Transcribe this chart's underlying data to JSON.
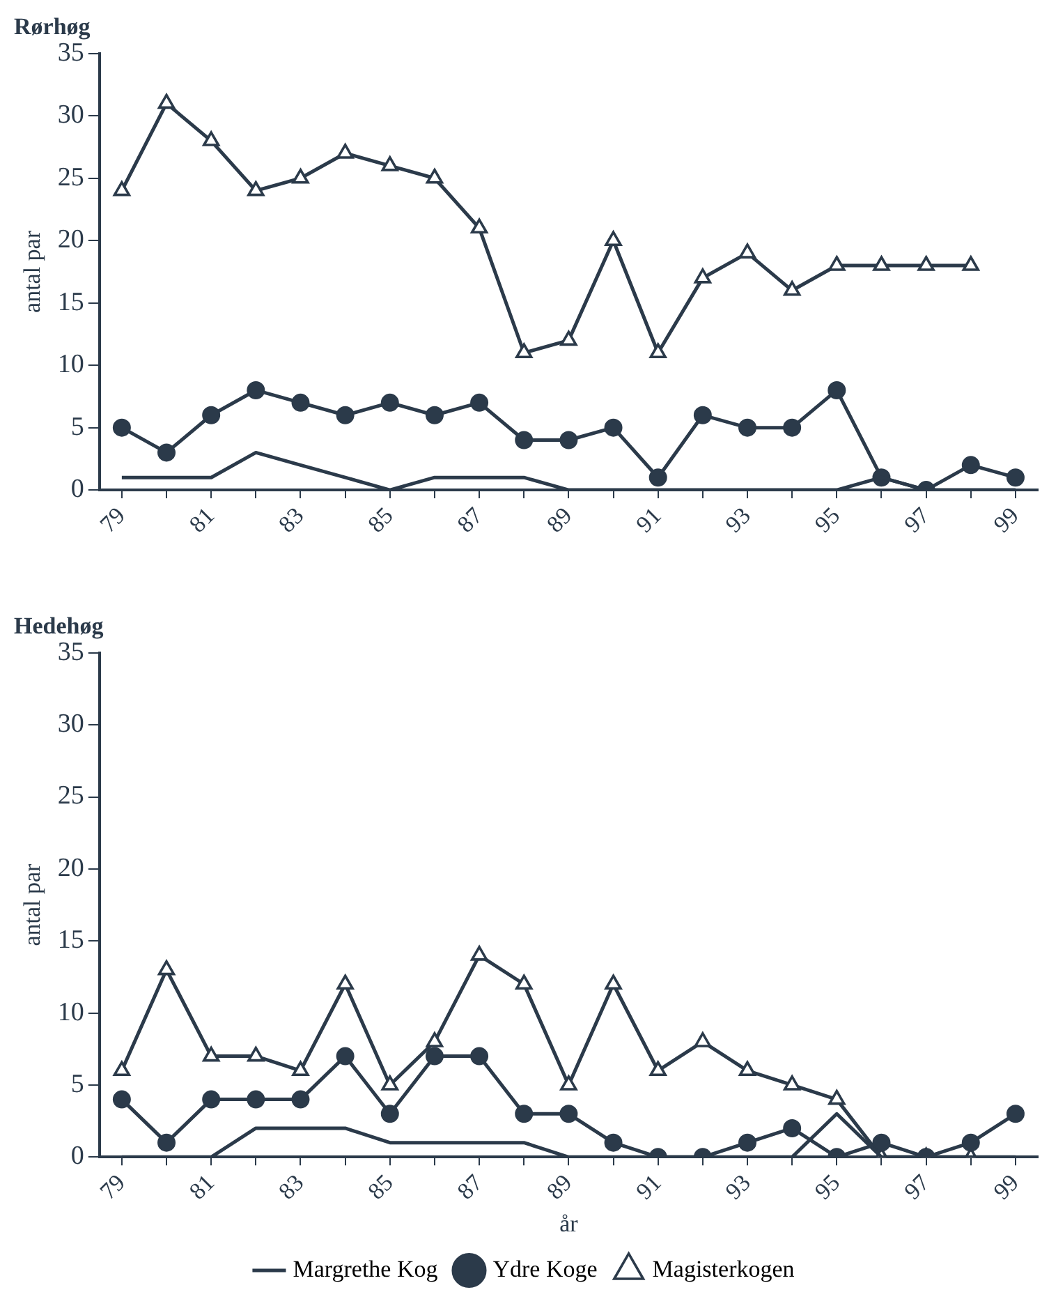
{
  "chart_data": [
    {
      "type": "line",
      "title": "Rørhøg",
      "ylabel": "antal par",
      "categories": [
        "79",
        null,
        "81",
        null,
        "83",
        null,
        "85",
        null,
        "87",
        null,
        "89",
        null,
        "91",
        null,
        "93",
        null,
        "95",
        null,
        "97",
        null,
        "99"
      ],
      "ylim": [
        0,
        35
      ],
      "yticks": [
        0,
        5,
        10,
        15,
        20,
        25,
        30,
        35
      ],
      "grid": false,
      "legend": false,
      "series": [
        {
          "color": "#2b3a4a",
          "marker": "none",
          "values": [
            1,
            1,
            1,
            3,
            2,
            1,
            0,
            1,
            1,
            1,
            0,
            0,
            0,
            0,
            0,
            0,
            0,
            1,
            0,
            0,
            0
          ]
        },
        {
          "color": "#2b3a4a",
          "marker": "circle",
          "values": [
            5,
            3,
            6,
            8,
            7,
            6,
            7,
            6,
            7,
            4,
            4,
            5,
            1,
            6,
            5,
            5,
            8,
            1,
            0,
            2,
            1
          ]
        },
        {
          "color": "#2b3a4a",
          "marker": "triangle",
          "values": [
            24,
            31,
            28,
            24,
            25,
            27,
            26,
            25,
            21,
            11,
            12,
            20,
            11,
            17,
            19,
            16,
            18,
            18,
            18,
            18,
            null
          ]
        }
      ]
    },
    {
      "type": "line",
      "title": "Hedehøg",
      "ylabel": "antal par",
      "xlabel": "år",
      "categories": [
        "79",
        null,
        "81",
        null,
        "83",
        null,
        "85",
        null,
        "87",
        null,
        "89",
        null,
        "91",
        null,
        "93",
        null,
        "95",
        null,
        "97",
        null,
        "99"
      ],
      "ylim": [
        0,
        35
      ],
      "yticks": [
        0,
        5,
        10,
        15,
        20,
        25,
        30,
        35
      ],
      "grid": false,
      "legend": "bottom",
      "series": [
        {
          "name": "Margrethe Kog",
          "color": "#2b3a4a",
          "marker": "none",
          "values": [
            0,
            0,
            0,
            2,
            2,
            2,
            1,
            1,
            1,
            1,
            0,
            0,
            0,
            0,
            0,
            0,
            3,
            0,
            0,
            0,
            0
          ]
        },
        {
          "name": "Ydre Koge",
          "color": "#2b3a4a",
          "marker": "circle",
          "values": [
            4,
            1,
            4,
            4,
            4,
            7,
            3,
            7,
            7,
            3,
            3,
            1,
            0,
            0,
            1,
            2,
            0,
            1,
            0,
            1,
            3
          ]
        },
        {
          "name": "Magisterkogen",
          "color": "#2b3a4a",
          "marker": "triangle",
          "values": [
            6,
            13,
            7,
            7,
            6,
            12,
            5,
            8,
            14,
            12,
            5,
            12,
            6,
            8,
            6,
            5,
            4,
            0,
            0,
            0,
            null
          ]
        }
      ]
    }
  ]
}
